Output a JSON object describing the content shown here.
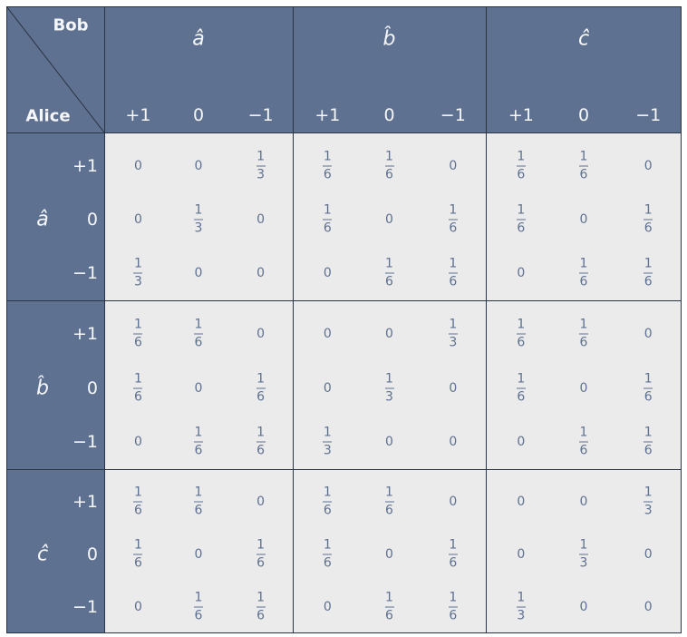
{
  "header": {
    "column_player": "Bob",
    "row_player": "Alice"
  },
  "column_groups": [
    {
      "label": "â",
      "outcomes": [
        "+1",
        "0",
        "−1"
      ]
    },
    {
      "label": "b̂",
      "outcomes": [
        "+1",
        "0",
        "−1"
      ]
    },
    {
      "label": "ĉ",
      "outcomes": [
        "+1",
        "0",
        "−1"
      ]
    }
  ],
  "row_groups": [
    {
      "label": "â",
      "outcomes": [
        "+1",
        "0",
        "−1"
      ]
    },
    {
      "label": "b̂",
      "outcomes": [
        "+1",
        "0",
        "−1"
      ]
    },
    {
      "label": "ĉ",
      "outcomes": [
        "+1",
        "0",
        "−1"
      ]
    }
  ],
  "cells": [
    [
      "0",
      "0",
      {
        "num": "1",
        "den": "3"
      },
      {
        "num": "1",
        "den": "6"
      },
      {
        "num": "1",
        "den": "6"
      },
      "0",
      {
        "num": "1",
        "den": "6"
      },
      {
        "num": "1",
        "den": "6"
      },
      "0"
    ],
    [
      "0",
      {
        "num": "1",
        "den": "3"
      },
      "0",
      {
        "num": "1",
        "den": "6"
      },
      "0",
      {
        "num": "1",
        "den": "6"
      },
      {
        "num": "1",
        "den": "6"
      },
      "0",
      {
        "num": "1",
        "den": "6"
      }
    ],
    [
      {
        "num": "1",
        "den": "3"
      },
      "0",
      "0",
      "0",
      {
        "num": "1",
        "den": "6"
      },
      {
        "num": "1",
        "den": "6"
      },
      "0",
      {
        "num": "1",
        "den": "6"
      },
      {
        "num": "1",
        "den": "6"
      }
    ],
    [
      {
        "num": "1",
        "den": "6"
      },
      {
        "num": "1",
        "den": "6"
      },
      "0",
      "0",
      "0",
      {
        "num": "1",
        "den": "3"
      },
      {
        "num": "1",
        "den": "6"
      },
      {
        "num": "1",
        "den": "6"
      },
      "0"
    ],
    [
      {
        "num": "1",
        "den": "6"
      },
      "0",
      {
        "num": "1",
        "den": "6"
      },
      "0",
      {
        "num": "1",
        "den": "3"
      },
      "0",
      {
        "num": "1",
        "den": "6"
      },
      "0",
      {
        "num": "1",
        "den": "6"
      }
    ],
    [
      "0",
      {
        "num": "1",
        "den": "6"
      },
      {
        "num": "1",
        "den": "6"
      },
      {
        "num": "1",
        "den": "3"
      },
      "0",
      "0",
      "0",
      {
        "num": "1",
        "den": "6"
      },
      {
        "num": "1",
        "den": "6"
      }
    ],
    [
      {
        "num": "1",
        "den": "6"
      },
      {
        "num": "1",
        "den": "6"
      },
      "0",
      {
        "num": "1",
        "den": "6"
      },
      {
        "num": "1",
        "den": "6"
      },
      "0",
      "0",
      "0",
      {
        "num": "1",
        "den": "3"
      }
    ],
    [
      {
        "num": "1",
        "den": "6"
      },
      "0",
      {
        "num": "1",
        "den": "6"
      },
      {
        "num": "1",
        "den": "6"
      },
      "0",
      {
        "num": "1",
        "den": "6"
      },
      "0",
      {
        "num": "1",
        "den": "3"
      },
      "0"
    ],
    [
      "0",
      {
        "num": "1",
        "den": "6"
      },
      {
        "num": "1",
        "den": "6"
      },
      "0",
      {
        "num": "1",
        "den": "6"
      },
      {
        "num": "1",
        "den": "6"
      },
      {
        "num": "1",
        "den": "3"
      },
      "0",
      "0"
    ]
  ]
}
